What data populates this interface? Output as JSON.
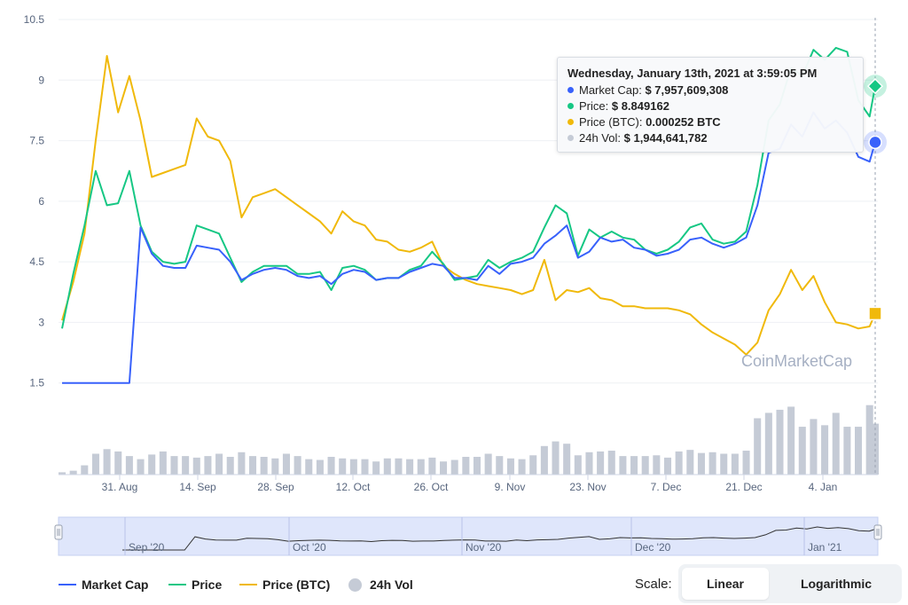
{
  "chart_data": {
    "type": "line",
    "y_ticks": [
      "10.5",
      "9",
      "7.5",
      "6",
      "4.5",
      "3",
      "1.5"
    ],
    "x_ticks": [
      "31. Aug",
      "14. Sep",
      "28. Sep",
      "12. Oct",
      "26. Oct",
      "9. Nov",
      "23. Nov",
      "7. Dec",
      "21. Dec",
      "4. Jan"
    ],
    "navigator_ticks": [
      "Sep '20",
      "Oct '20",
      "Nov '20",
      "Dec '20",
      "Jan '21"
    ],
    "ylim": [
      0,
      10.5
    ],
    "grid": true,
    "watermark": "CoinMarketCap",
    "x": [
      "2020-08-21",
      "2020-08-23",
      "2020-08-25",
      "2020-08-27",
      "2020-08-29",
      "2020-08-31",
      "2020-09-02",
      "2020-09-04",
      "2020-09-06",
      "2020-09-08",
      "2020-09-10",
      "2020-09-12",
      "2020-09-14",
      "2020-09-16",
      "2020-09-18",
      "2020-09-20",
      "2020-09-22",
      "2020-09-24",
      "2020-09-26",
      "2020-09-28",
      "2020-09-30",
      "2020-10-02",
      "2020-10-04",
      "2020-10-06",
      "2020-10-08",
      "2020-10-10",
      "2020-10-12",
      "2020-10-14",
      "2020-10-16",
      "2020-10-18",
      "2020-10-20",
      "2020-10-22",
      "2020-10-24",
      "2020-10-26",
      "2020-10-28",
      "2020-10-30",
      "2020-11-01",
      "2020-11-03",
      "2020-11-05",
      "2020-11-07",
      "2020-11-09",
      "2020-11-11",
      "2020-11-13",
      "2020-11-15",
      "2020-11-17",
      "2020-11-19",
      "2020-11-21",
      "2020-11-23",
      "2020-11-25",
      "2020-11-27",
      "2020-11-29",
      "2020-12-01",
      "2020-12-03",
      "2020-12-05",
      "2020-12-07",
      "2020-12-09",
      "2020-12-11",
      "2020-12-13",
      "2020-12-15",
      "2020-12-17",
      "2020-12-19",
      "2020-12-21",
      "2020-12-23",
      "2020-12-25",
      "2020-12-27",
      "2020-12-29",
      "2020-12-31",
      "2021-01-02",
      "2021-01-04",
      "2021-01-06",
      "2021-01-08",
      "2021-01-10",
      "2021-01-12",
      "2021-01-13"
    ],
    "series": [
      {
        "name": "Market Cap",
        "color": "#3861fb",
        "values": [
          1.5,
          1.5,
          1.5,
          1.5,
          1.5,
          1.5,
          1.5,
          5.35,
          4.7,
          4.4,
          4.35,
          4.35,
          4.9,
          4.85,
          4.8,
          4.5,
          4.05,
          4.2,
          4.3,
          4.35,
          4.3,
          4.15,
          4.1,
          4.15,
          3.95,
          4.2,
          4.3,
          4.25,
          4.05,
          4.1,
          4.1,
          4.25,
          4.35,
          4.45,
          4.4,
          4.1,
          4.1,
          4.05,
          4.4,
          4.2,
          4.45,
          4.5,
          4.6,
          4.95,
          5.15,
          5.4,
          4.6,
          4.75,
          5.1,
          5.0,
          5.05,
          4.85,
          4.8,
          4.65,
          4.7,
          4.8,
          5.05,
          5.1,
          4.95,
          4.85,
          4.95,
          5.1,
          5.9,
          7.2,
          7.3,
          7.9,
          7.6,
          8.2,
          7.8,
          8.0,
          7.7,
          7.1,
          6.98,
          7.46
        ]
      },
      {
        "name": "Price",
        "color": "#16c784",
        "values": [
          2.85,
          4.2,
          5.4,
          6.75,
          5.9,
          5.95,
          6.75,
          5.4,
          4.75,
          4.5,
          4.45,
          4.5,
          5.4,
          5.3,
          5.2,
          4.6,
          4.0,
          4.25,
          4.4,
          4.4,
          4.4,
          4.2,
          4.2,
          4.25,
          3.8,
          4.35,
          4.4,
          4.3,
          4.05,
          4.1,
          4.1,
          4.3,
          4.4,
          4.75,
          4.45,
          4.05,
          4.1,
          4.15,
          4.55,
          4.35,
          4.5,
          4.6,
          4.75,
          5.35,
          5.9,
          5.7,
          4.65,
          5.3,
          5.1,
          5.25,
          5.1,
          5.05,
          4.8,
          4.7,
          4.8,
          5.0,
          5.35,
          5.45,
          5.05,
          4.95,
          5.0,
          5.25,
          6.4,
          8.0,
          8.4,
          9.3,
          9.1,
          9.75,
          9.5,
          9.8,
          9.7,
          8.5,
          8.1,
          8.85
        ]
      },
      {
        "name": "Price (BTC)",
        "color": "#f0b90b",
        "values": [
          3.05,
          4.0,
          5.2,
          7.5,
          9.6,
          8.2,
          9.1,
          8.0,
          6.6,
          6.7,
          6.8,
          6.9,
          8.05,
          7.6,
          7.5,
          7.0,
          5.6,
          6.1,
          6.2,
          6.3,
          6.1,
          5.9,
          5.7,
          5.5,
          5.2,
          5.75,
          5.5,
          5.4,
          5.05,
          5.0,
          4.8,
          4.75,
          4.85,
          5.0,
          4.4,
          4.2,
          4.05,
          3.95,
          3.9,
          3.85,
          3.8,
          3.7,
          3.8,
          4.55,
          3.55,
          3.8,
          3.75,
          3.85,
          3.6,
          3.55,
          3.4,
          3.4,
          3.35,
          3.35,
          3.35,
          3.3,
          3.2,
          2.95,
          2.75,
          2.6,
          2.45,
          2.2,
          2.5,
          3.3,
          3.7,
          4.3,
          3.8,
          4.15,
          3.5,
          3.0,
          2.95,
          2.85,
          2.9,
          3.22
        ]
      }
    ],
    "volume": {
      "name": "24h Vol",
      "color": "#c5cbd6",
      "values": [
        0.03,
        0.05,
        0.12,
        0.27,
        0.33,
        0.3,
        0.24,
        0.2,
        0.26,
        0.3,
        0.24,
        0.24,
        0.22,
        0.24,
        0.27,
        0.23,
        0.29,
        0.24,
        0.23,
        0.21,
        0.27,
        0.24,
        0.2,
        0.19,
        0.23,
        0.21,
        0.2,
        0.2,
        0.17,
        0.21,
        0.21,
        0.2,
        0.2,
        0.22,
        0.17,
        0.19,
        0.23,
        0.23,
        0.27,
        0.24,
        0.21,
        0.2,
        0.25,
        0.37,
        0.43,
        0.4,
        0.25,
        0.29,
        0.3,
        0.31,
        0.24,
        0.24,
        0.24,
        0.25,
        0.22,
        0.3,
        0.32,
        0.28,
        0.29,
        0.27,
        0.27,
        0.31,
        0.73,
        0.8,
        0.84,
        0.88,
        0.62,
        0.72,
        0.64,
        0.8,
        0.62,
        0.62,
        0.9,
        0.66
      ]
    },
    "navigator_series": "Market Cap"
  },
  "tooltip": {
    "title": "Wednesday, January 13th, 2021 at 3:59:05 PM",
    "rows": [
      {
        "label": "Market Cap:",
        "value": "$ 7,957,609,308",
        "color": "#3861fb"
      },
      {
        "label": "Price:",
        "value": "$ 8.849162",
        "color": "#16c784"
      },
      {
        "label": "Price (BTC):",
        "value": "0.000252 BTC",
        "color": "#f0b90b"
      },
      {
        "label": "24h Vol:",
        "value": "$ 1,944,641,782",
        "color": "#c5cbd6"
      }
    ]
  },
  "legend": [
    {
      "label": "Market Cap",
      "color": "#3861fb",
      "symbol": "line"
    },
    {
      "label": "Price",
      "color": "#16c784",
      "symbol": "line"
    },
    {
      "label": "Price (BTC)",
      "color": "#f0b90b",
      "symbol": "line"
    },
    {
      "label": "24h Vol",
      "color": "#c5cbd6",
      "symbol": "dot"
    }
  ],
  "scale": {
    "label": "Scale:",
    "options": [
      "Linear",
      "Logarithmic"
    ],
    "selected": "Linear"
  }
}
